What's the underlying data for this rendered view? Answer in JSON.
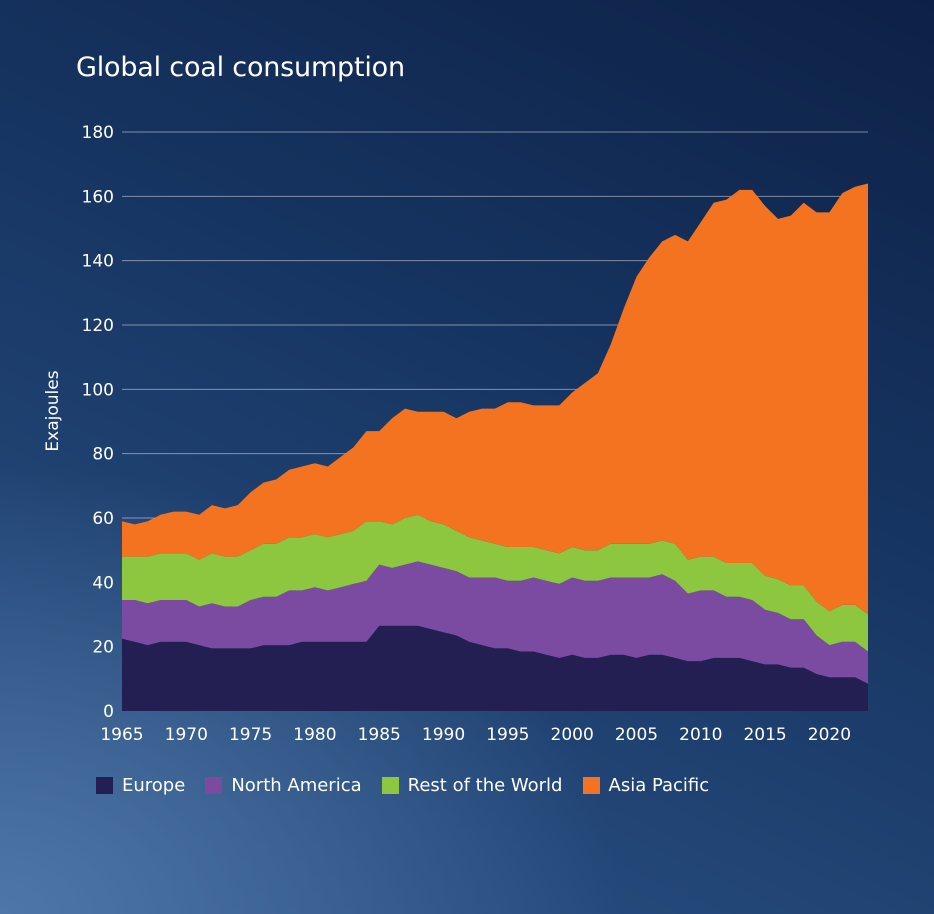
{
  "chart_data": {
    "type": "area",
    "stacked": true,
    "title": "Global coal consumption",
    "xlabel": "",
    "ylabel": "Exajoules",
    "ylim": [
      0,
      180
    ],
    "xlim": [
      1965,
      2023
    ],
    "yticks": [
      0,
      20,
      40,
      60,
      80,
      100,
      120,
      140,
      160,
      180
    ],
    "xticks": [
      "1965",
      "1970",
      "1975",
      "1980",
      "1985",
      "1990",
      "1995",
      "2000",
      "2005",
      "2010",
      "2015",
      "2020"
    ],
    "grid": "horizontal",
    "legend_position": "bottom",
    "x": [
      1965,
      1966,
      1967,
      1968,
      1969,
      1970,
      1971,
      1972,
      1973,
      1974,
      1975,
      1976,
      1977,
      1978,
      1979,
      1980,
      1981,
      1982,
      1983,
      1984,
      1985,
      1986,
      1987,
      1988,
      1989,
      1990,
      1991,
      1992,
      1993,
      1994,
      1995,
      1996,
      1997,
      1998,
      1999,
      2000,
      2001,
      2002,
      2003,
      2004,
      2005,
      2006,
      2007,
      2008,
      2009,
      2010,
      2011,
      2012,
      2013,
      2014,
      2015,
      2016,
      2017,
      2018,
      2019,
      2020,
      2021,
      2022,
      2023
    ],
    "series": [
      {
        "name": "Europe",
        "color": "#231f52",
        "values": [
          22.5,
          21.5,
          20.5,
          21.5,
          21.5,
          21.5,
          20.5,
          19.5,
          19.5,
          19.5,
          19.5,
          20.5,
          20.5,
          20.5,
          21.5,
          21.5,
          21.5,
          21.5,
          21.5,
          21.5,
          26.5,
          26.5,
          26.5,
          26.5,
          25.5,
          24.5,
          23.5,
          21.5,
          20.5,
          19.5,
          19.5,
          18.5,
          18.5,
          17.5,
          16.5,
          17.5,
          16.5,
          16.5,
          17.5,
          17.5,
          16.5,
          17.5,
          17.5,
          16.5,
          15.5,
          15.5,
          16.5,
          16.5,
          16.5,
          15.5,
          14.5,
          14.5,
          13.5,
          13.5,
          11.5,
          10.5,
          10.5,
          10.5,
          8.5
        ]
      },
      {
        "name": "North America",
        "color": "#7b4ba1",
        "values": [
          12,
          13,
          13,
          13,
          13,
          13,
          12,
          14,
          13,
          13,
          15,
          15,
          15,
          17,
          16,
          17,
          16,
          17,
          18,
          19,
          19,
          18,
          19,
          20,
          20,
          20,
          20,
          20,
          21,
          22,
          21,
          22,
          23,
          23,
          23,
          24,
          24,
          24,
          24,
          24,
          25,
          24,
          25,
          24,
          21,
          22,
          21,
          19,
          19,
          19,
          17,
          16,
          15,
          15,
          12,
          10,
          11,
          11,
          10
        ]
      },
      {
        "name": "Rest of the World",
        "color": "#8dc63f",
        "values": [
          13.5,
          13.5,
          14.5,
          14.5,
          14.5,
          14.5,
          14.5,
          15.5,
          15.5,
          15.5,
          15.5,
          16.5,
          16.5,
          16.5,
          16.5,
          16.5,
          16.5,
          16.5,
          16.5,
          18.5,
          13.5,
          13.5,
          14.5,
          14.5,
          13.5,
          13.5,
          12.5,
          12.5,
          11.5,
          10.5,
          10.5,
          10.5,
          9.5,
          9.5,
          9.5,
          9.5,
          9.5,
          9.5,
          10.5,
          10.5,
          10.5,
          10.5,
          10.5,
          11.5,
          10.5,
          10.5,
          10.5,
          10.5,
          10.5,
          11.5,
          10.5,
          10.5,
          10.5,
          10.5,
          10.5,
          10.5,
          11.5,
          11.5,
          11.5
        ]
      },
      {
        "name": "Asia Pacific",
        "color": "#f47321",
        "values": [
          11,
          10,
          11,
          12,
          13,
          13,
          14,
          15,
          15,
          16,
          18,
          19,
          20,
          21,
          22,
          22,
          22,
          24,
          26,
          28,
          28,
          33,
          34,
          32,
          34,
          35,
          35,
          39,
          41,
          42,
          45,
          45,
          44,
          45,
          46,
          48,
          52,
          55,
          62,
          73,
          83,
          89,
          93,
          96,
          99,
          104,
          110,
          113,
          116,
          116,
          115,
          112,
          115,
          119,
          121,
          124,
          128,
          130,
          134
        ]
      }
    ]
  }
}
